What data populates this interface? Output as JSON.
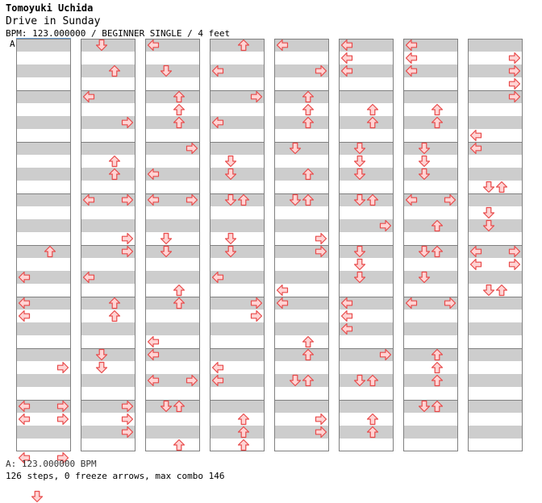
{
  "header": {
    "artist": "Tomoyuki Uchida",
    "title": "Drive in Sunday",
    "meta": "BPM: 123.000000 / BEGINNER SINGLE / 4 feet"
  },
  "bpm_marker": "A",
  "footer": {
    "bpm_line": "A: 123.000000 BPM",
    "stats": "126 steps, 0 freeze arrows, max combo 146"
  },
  "colors": {
    "arrow_fill": "#ffd4d4",
    "arrow_stroke": "#e84a4a",
    "band": "#cdcdcd",
    "border": "#808080",
    "bpm_line": "#6aa0d8"
  },
  "chart_data": {
    "type": "step-chart",
    "columns": 8,
    "measures_per_column": 8,
    "lanes": [
      "left",
      "down",
      "up",
      "right"
    ],
    "notes": [
      {
        "c": 0,
        "r": 16,
        "l": 2
      },
      {
        "c": 0,
        "r": 18,
        "l": 0
      },
      {
        "c": 0,
        "r": 20,
        "l": 0
      },
      {
        "c": 0,
        "r": 21,
        "l": 0
      },
      {
        "c": 0,
        "r": 25,
        "l": 3
      },
      {
        "c": 0,
        "r": 28,
        "l": 0
      },
      {
        "c": 0,
        "r": 28,
        "l": 3
      },
      {
        "c": 0,
        "r": 29,
        "l": 0
      },
      {
        "c": 0,
        "r": 29,
        "l": 3
      },
      {
        "c": 0,
        "r": 32,
        "l": 0
      },
      {
        "c": 0,
        "r": 32,
        "l": 3
      },
      {
        "c": 0,
        "r": 35,
        "l": 1
      },
      {
        "c": 1,
        "r": 0,
        "l": 1
      },
      {
        "c": 1,
        "r": 2,
        "l": 2
      },
      {
        "c": 1,
        "r": 4,
        "l": 0
      },
      {
        "c": 1,
        "r": 6,
        "l": 3
      },
      {
        "c": 1,
        "r": 9,
        "l": 2
      },
      {
        "c": 1,
        "r": 10,
        "l": 2
      },
      {
        "c": 1,
        "r": 12,
        "l": 0
      },
      {
        "c": 1,
        "r": 12,
        "l": 3
      },
      {
        "c": 1,
        "r": 15,
        "l": 3
      },
      {
        "c": 1,
        "r": 16,
        "l": 3
      },
      {
        "c": 1,
        "r": 18,
        "l": 0
      },
      {
        "c": 1,
        "r": 20,
        "l": 2
      },
      {
        "c": 1,
        "r": 21,
        "l": 2
      },
      {
        "c": 1,
        "r": 24,
        "l": 1
      },
      {
        "c": 1,
        "r": 25,
        "l": 1
      },
      {
        "c": 1,
        "r": 28,
        "l": 3
      },
      {
        "c": 1,
        "r": 29,
        "l": 3
      },
      {
        "c": 1,
        "r": 30,
        "l": 3
      },
      {
        "c": 2,
        "r": 0,
        "l": 0
      },
      {
        "c": 2,
        "r": 2,
        "l": 1
      },
      {
        "c": 2,
        "r": 4,
        "l": 2
      },
      {
        "c": 2,
        "r": 5,
        "l": 2
      },
      {
        "c": 2,
        "r": 6,
        "l": 2
      },
      {
        "c": 2,
        "r": 8,
        "l": 3
      },
      {
        "c": 2,
        "r": 10,
        "l": 0
      },
      {
        "c": 2,
        "r": 12,
        "l": 0
      },
      {
        "c": 2,
        "r": 12,
        "l": 3
      },
      {
        "c": 2,
        "r": 15,
        "l": 1
      },
      {
        "c": 2,
        "r": 16,
        "l": 1
      },
      {
        "c": 2,
        "r": 19,
        "l": 2
      },
      {
        "c": 2,
        "r": 20,
        "l": 2
      },
      {
        "c": 2,
        "r": 23,
        "l": 0
      },
      {
        "c": 2,
        "r": 24,
        "l": 0
      },
      {
        "c": 2,
        "r": 26,
        "l": 0
      },
      {
        "c": 2,
        "r": 26,
        "l": 3
      },
      {
        "c": 2,
        "r": 28,
        "l": 1
      },
      {
        "c": 2,
        "r": 28,
        "l": 2
      },
      {
        "c": 2,
        "r": 31,
        "l": 2
      },
      {
        "c": 3,
        "r": 0,
        "l": 2
      },
      {
        "c": 3,
        "r": 2,
        "l": 0
      },
      {
        "c": 3,
        "r": 4,
        "l": 3
      },
      {
        "c": 3,
        "r": 6,
        "l": 0
      },
      {
        "c": 3,
        "r": 9,
        "l": 1
      },
      {
        "c": 3,
        "r": 10,
        "l": 1
      },
      {
        "c": 3,
        "r": 12,
        "l": 1
      },
      {
        "c": 3,
        "r": 12,
        "l": 2
      },
      {
        "c": 3,
        "r": 15,
        "l": 1
      },
      {
        "c": 3,
        "r": 16,
        "l": 1
      },
      {
        "c": 3,
        "r": 18,
        "l": 0
      },
      {
        "c": 3,
        "r": 20,
        "l": 3
      },
      {
        "c": 3,
        "r": 21,
        "l": 3
      },
      {
        "c": 3,
        "r": 25,
        "l": 0
      },
      {
        "c": 3,
        "r": 26,
        "l": 0
      },
      {
        "c": 3,
        "r": 29,
        "l": 2
      },
      {
        "c": 3,
        "r": 30,
        "l": 2
      },
      {
        "c": 3,
        "r": 31,
        "l": 2
      },
      {
        "c": 4,
        "r": 0,
        "l": 0
      },
      {
        "c": 4,
        "r": 2,
        "l": 3
      },
      {
        "c": 4,
        "r": 4,
        "l": 2
      },
      {
        "c": 4,
        "r": 5,
        "l": 2
      },
      {
        "c": 4,
        "r": 6,
        "l": 2
      },
      {
        "c": 4,
        "r": 8,
        "l": 1
      },
      {
        "c": 4,
        "r": 10,
        "l": 2
      },
      {
        "c": 4,
        "r": 12,
        "l": 1
      },
      {
        "c": 4,
        "r": 12,
        "l": 2
      },
      {
        "c": 4,
        "r": 15,
        "l": 3
      },
      {
        "c": 4,
        "r": 16,
        "l": 3
      },
      {
        "c": 4,
        "r": 19,
        "l": 0
      },
      {
        "c": 4,
        "r": 20,
        "l": 0
      },
      {
        "c": 4,
        "r": 23,
        "l": 2
      },
      {
        "c": 4,
        "r": 24,
        "l": 2
      },
      {
        "c": 4,
        "r": 26,
        "l": 1
      },
      {
        "c": 4,
        "r": 26,
        "l": 2
      },
      {
        "c": 4,
        "r": 29,
        "l": 3
      },
      {
        "c": 4,
        "r": 30,
        "l": 3
      },
      {
        "c": 5,
        "r": 0,
        "l": 0
      },
      {
        "c": 5,
        "r": 1,
        "l": 0
      },
      {
        "c": 5,
        "r": 2,
        "l": 0
      },
      {
        "c": 5,
        "r": 5,
        "l": 2
      },
      {
        "c": 5,
        "r": 6,
        "l": 2
      },
      {
        "c": 5,
        "r": 8,
        "l": 1
      },
      {
        "c": 5,
        "r": 9,
        "l": 1
      },
      {
        "c": 5,
        "r": 10,
        "l": 1
      },
      {
        "c": 5,
        "r": 12,
        "l": 1
      },
      {
        "c": 5,
        "r": 12,
        "l": 2
      },
      {
        "c": 5,
        "r": 14,
        "l": 3
      },
      {
        "c": 5,
        "r": 16,
        "l": 1
      },
      {
        "c": 5,
        "r": 17,
        "l": 1
      },
      {
        "c": 5,
        "r": 18,
        "l": 1
      },
      {
        "c": 5,
        "r": 20,
        "l": 0
      },
      {
        "c": 5,
        "r": 21,
        "l": 0
      },
      {
        "c": 5,
        "r": 22,
        "l": 0
      },
      {
        "c": 5,
        "r": 24,
        "l": 3
      },
      {
        "c": 5,
        "r": 26,
        "l": 1
      },
      {
        "c": 5,
        "r": 26,
        "l": 2
      },
      {
        "c": 5,
        "r": 29,
        "l": 2
      },
      {
        "c": 5,
        "r": 30,
        "l": 2
      },
      {
        "c": 6,
        "r": 0,
        "l": 0
      },
      {
        "c": 6,
        "r": 1,
        "l": 0
      },
      {
        "c": 6,
        "r": 2,
        "l": 0
      },
      {
        "c": 6,
        "r": 5,
        "l": 2
      },
      {
        "c": 6,
        "r": 6,
        "l": 2
      },
      {
        "c": 6,
        "r": 8,
        "l": 1
      },
      {
        "c": 6,
        "r": 9,
        "l": 1
      },
      {
        "c": 6,
        "r": 10,
        "l": 1
      },
      {
        "c": 6,
        "r": 12,
        "l": 0
      },
      {
        "c": 6,
        "r": 12,
        "l": 3
      },
      {
        "c": 6,
        "r": 14,
        "l": 2
      },
      {
        "c": 6,
        "r": 16,
        "l": 1
      },
      {
        "c": 6,
        "r": 16,
        "l": 2
      },
      {
        "c": 6,
        "r": 18,
        "l": 1
      },
      {
        "c": 6,
        "r": 20,
        "l": 0
      },
      {
        "c": 6,
        "r": 20,
        "l": 3
      },
      {
        "c": 6,
        "r": 24,
        "l": 2
      },
      {
        "c": 6,
        "r": 25,
        "l": 2
      },
      {
        "c": 6,
        "r": 26,
        "l": 2
      },
      {
        "c": 6,
        "r": 28,
        "l": 1
      },
      {
        "c": 6,
        "r": 28,
        "l": 2
      },
      {
        "c": 7,
        "r": 1,
        "l": 3
      },
      {
        "c": 7,
        "r": 2,
        "l": 3
      },
      {
        "c": 7,
        "r": 3,
        "l": 3
      },
      {
        "c": 7,
        "r": 4,
        "l": 3
      },
      {
        "c": 7,
        "r": 7,
        "l": 0
      },
      {
        "c": 7,
        "r": 8,
        "l": 0
      },
      {
        "c": 7,
        "r": 11,
        "l": 1
      },
      {
        "c": 7,
        "r": 11,
        "l": 2
      },
      {
        "c": 7,
        "r": 13,
        "l": 1
      },
      {
        "c": 7,
        "r": 14,
        "l": 1
      },
      {
        "c": 7,
        "r": 16,
        "l": 0
      },
      {
        "c": 7,
        "r": 16,
        "l": 3
      },
      {
        "c": 7,
        "r": 17,
        "l": 0
      },
      {
        "c": 7,
        "r": 17,
        "l": 3
      },
      {
        "c": 7,
        "r": 19,
        "l": 1
      },
      {
        "c": 7,
        "r": 19,
        "l": 2
      }
    ]
  }
}
